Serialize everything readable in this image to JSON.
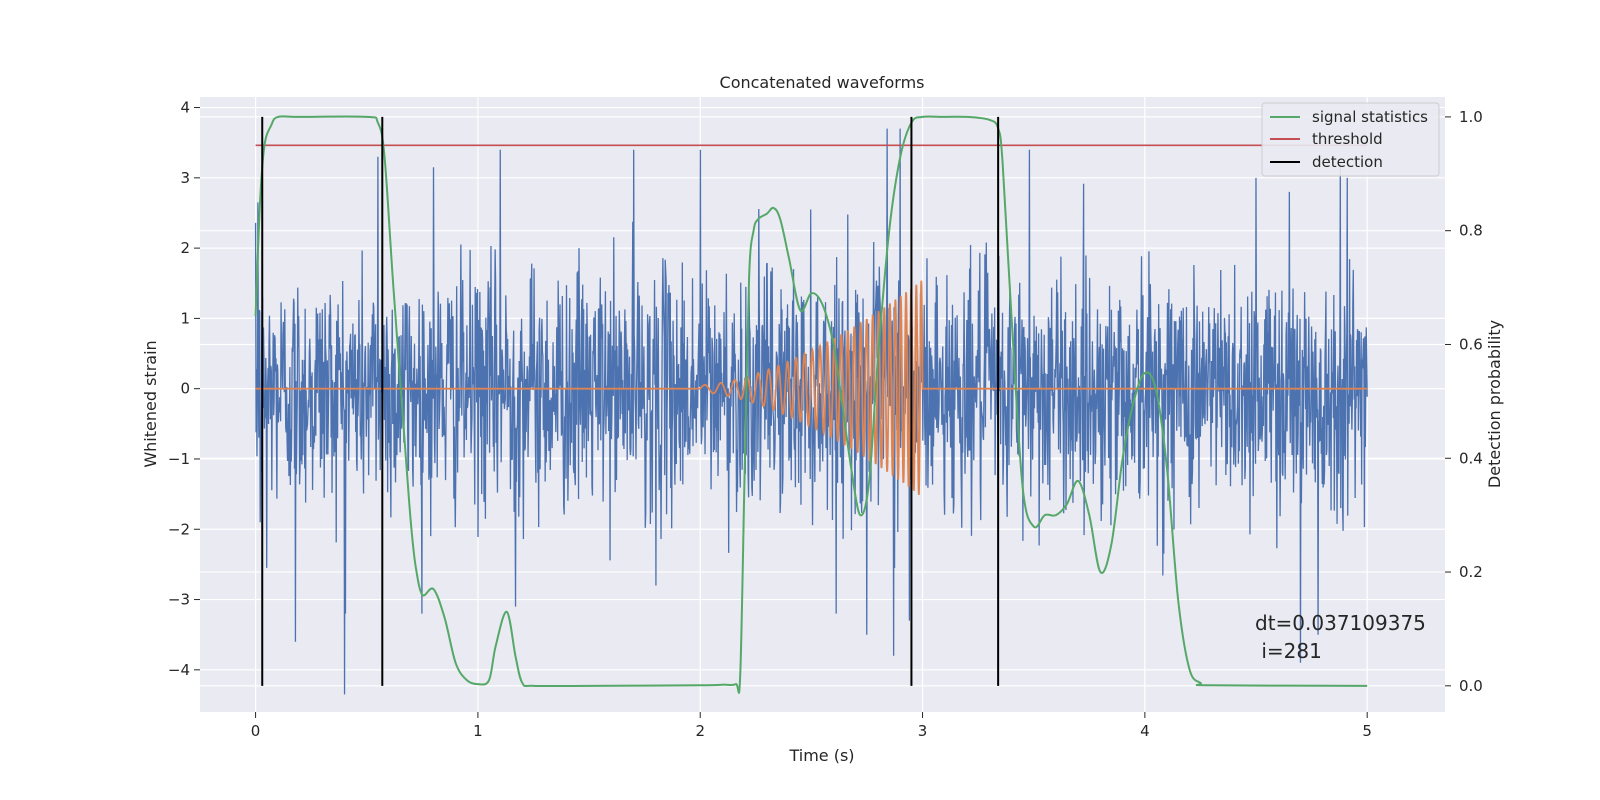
{
  "chart_data": {
    "type": "line",
    "title": "Concatenated waveforms",
    "xlabel": "Time (s)",
    "ylabel": "Whitened strain",
    "y2label": "Detection probability",
    "xlim": [
      -0.25,
      5.35
    ],
    "ylim": [
      -4.6,
      4.15
    ],
    "y2lim": [
      -0.046,
      1.035
    ],
    "xticks": [
      0,
      1,
      2,
      3,
      4,
      5
    ],
    "xtick_labels": [
      "0",
      "1",
      "2",
      "3",
      "4",
      "5"
    ],
    "yticks": [
      -4,
      -3,
      -2,
      -1,
      0,
      1,
      2,
      3,
      4
    ],
    "ytick_labels": [
      "−4",
      "−3",
      "−2",
      "−1",
      "0",
      "1",
      "2",
      "3",
      "4"
    ],
    "y2ticks": [
      0.0,
      0.2,
      0.4,
      0.6,
      0.8,
      1.0
    ],
    "y2tick_labels": [
      "0.0",
      "0.2",
      "0.4",
      "0.6",
      "0.8",
      "1.0"
    ],
    "grid": true,
    "legend_position": "top-right",
    "legend": [
      {
        "label": "signal statistics",
        "color": "#55a868"
      },
      {
        "label": "threshold",
        "color": "#c44e52"
      },
      {
        "label": "detection",
        "color": "#000000"
      }
    ],
    "strain_series": {
      "name": "strain",
      "color": "#4c72b0",
      "x_range": [
        0,
        5
      ],
      "std": 0.85,
      "spikes": [
        [
          0.01,
          2.65
        ],
        [
          0.02,
          -1.9
        ],
        [
          0.05,
          -2.55
        ],
        [
          0.18,
          -3.6
        ],
        [
          0.4,
          -4.35
        ],
        [
          0.55,
          3.3
        ],
        [
          0.8,
          3.15
        ],
        [
          1.1,
          3.4
        ],
        [
          1.17,
          -3.1
        ],
        [
          1.7,
          3.4
        ],
        [
          1.8,
          -2.8
        ],
        [
          2.0,
          3.4
        ],
        [
          2.75,
          -3.5
        ],
        [
          2.84,
          3.7
        ],
        [
          2.9,
          3.7
        ],
        [
          2.87,
          -3.8
        ],
        [
          2.94,
          -3.3
        ],
        [
          3.48,
          3.4
        ],
        [
          4.5,
          3.0
        ],
        [
          4.65,
          2.8
        ],
        [
          4.7,
          -3.9
        ],
        [
          4.78,
          -3.5
        ],
        [
          4.88,
          3.2
        ],
        [
          4.91,
          3.0
        ]
      ]
    },
    "injection_series": {
      "name": "injected waveform",
      "color": "#dd8452",
      "t_start": 2.0,
      "t_end": 3.0,
      "amp_start": 0.05,
      "amp_end": 1.55,
      "f_start": 12,
      "f_end": 45
    },
    "probability_series": {
      "name": "signal statistics",
      "color": "#55a868",
      "x": [
        0.0,
        0.02,
        0.04,
        0.07,
        0.1,
        0.2,
        0.5,
        0.55,
        0.58,
        0.62,
        0.68,
        0.7,
        0.72,
        0.75,
        0.8,
        0.85,
        0.9,
        0.95,
        1.0,
        1.05,
        1.08,
        1.13,
        1.17,
        1.2,
        1.25,
        1.5,
        2.0,
        2.1,
        2.16,
        2.18,
        2.2,
        2.22,
        2.24,
        2.26,
        2.3,
        2.33,
        2.36,
        2.4,
        2.45,
        2.5,
        2.55,
        2.6,
        2.63,
        2.68,
        2.72,
        2.76,
        2.8,
        2.85,
        2.9,
        2.95,
        3.0,
        3.1,
        3.2,
        3.3,
        3.34,
        3.36,
        3.4,
        3.45,
        3.5,
        3.55,
        3.6,
        3.65,
        3.7,
        3.75,
        3.8,
        3.85,
        3.9,
        3.95,
        4.0,
        4.05,
        4.1,
        4.15,
        4.2,
        4.25,
        4.3,
        5.0
      ],
      "y": [
        0.65,
        0.85,
        0.95,
        0.985,
        1.0,
        1.0,
        1.0,
        0.99,
        0.93,
        0.7,
        0.38,
        0.28,
        0.21,
        0.16,
        0.17,
        0.12,
        0.04,
        0.01,
        0.003,
        0.01,
        0.07,
        0.13,
        0.05,
        0.005,
        0.0,
        0.0,
        0.001,
        0.002,
        0.003,
        0.02,
        0.38,
        0.72,
        0.8,
        0.82,
        0.83,
        0.84,
        0.82,
        0.75,
        0.66,
        0.69,
        0.67,
        0.6,
        0.52,
        0.38,
        0.3,
        0.36,
        0.58,
        0.8,
        0.93,
        0.99,
        1.0,
        1.0,
        1.0,
        0.995,
        0.98,
        0.92,
        0.65,
        0.35,
        0.28,
        0.3,
        0.3,
        0.32,
        0.36,
        0.3,
        0.2,
        0.25,
        0.4,
        0.5,
        0.55,
        0.52,
        0.38,
        0.15,
        0.03,
        0.005,
        0.001,
        0.0
      ]
    },
    "threshold": {
      "name": "threshold",
      "value": 0.95,
      "x_range": [
        0,
        5
      ],
      "color": "#c44e52"
    },
    "detections": {
      "name": "detection",
      "x": [
        0.03,
        0.57,
        2.95,
        3.34
      ],
      "y_range": [
        0.0,
        1.0
      ],
      "color": "#000000"
    },
    "annotation": {
      "line1": "dt=0.037109375",
      "line2": " i=281"
    },
    "colors": {
      "background": "#eaeaf2",
      "grid": "#ffffff",
      "text": "#262626"
    }
  }
}
